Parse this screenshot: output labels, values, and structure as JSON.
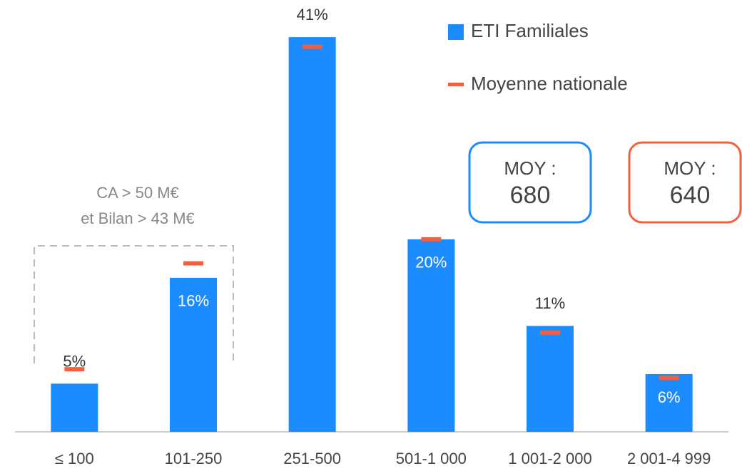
{
  "chart_data": {
    "type": "bar",
    "categories": [
      "≤ 100",
      "101-250",
      "251-500",
      "501-1 000",
      "1 001-2 000",
      "2 001-4 999"
    ],
    "series": [
      {
        "name": "ETI Familiales",
        "color": "#1a8cff",
        "values": [
          5,
          16,
          41,
          20,
          11,
          6
        ],
        "value_labels": [
          "5%",
          "16%",
          "41%",
          "20%",
          "11%",
          "6%"
        ]
      },
      {
        "name": "Moyenne nationale",
        "color": "#f4603c",
        "values": [
          6.5,
          17.5,
          40,
          20,
          10.3,
          5.6
        ]
      }
    ],
    "ylim": [
      0,
      45
    ],
    "annotations": [
      "CA > 50 M€",
      "et Bilan > 43 M€"
    ],
    "boxes": [
      {
        "label": "MOY :",
        "value": 680,
        "color": "#1a8cff"
      },
      {
        "label": "MOY :",
        "value": 640,
        "color": "#f4603c"
      }
    ]
  }
}
